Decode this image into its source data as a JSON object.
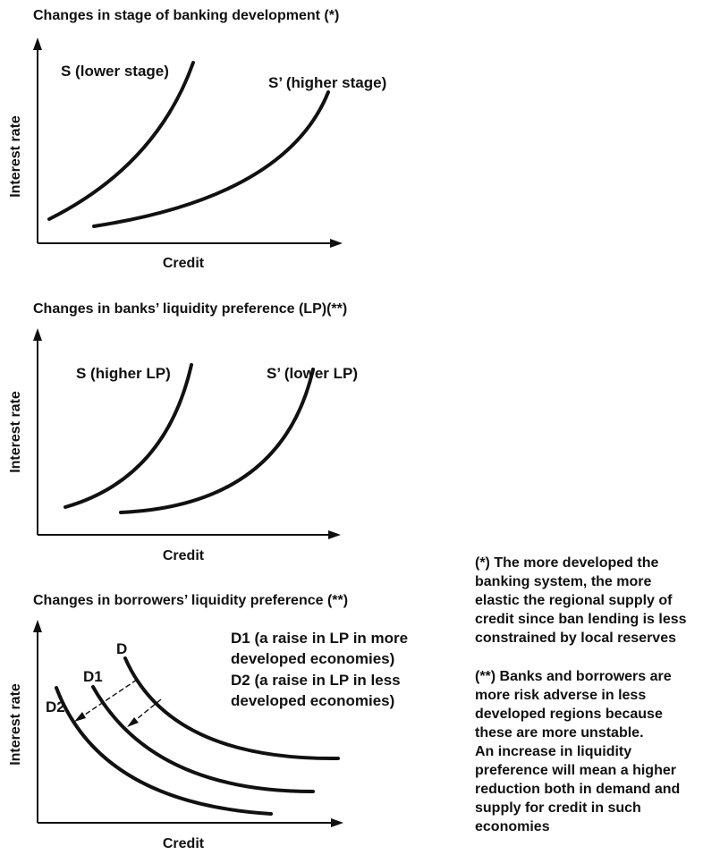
{
  "panel1": {
    "title": "Changes in stage of banking development (*)",
    "ylabel": "Interest rate",
    "xlabel": "Credit",
    "curve_s_label": "S (lower stage)",
    "curve_s2_label": "S’ (higher stage)"
  },
  "panel2": {
    "title": "Changes in banks’ liquidity preference (LP)(**)",
    "ylabel": "Interest rate",
    "xlabel": "Credit",
    "curve_s_label": "S (higher LP)",
    "curve_s2_label": "S’ (lower LP)"
  },
  "panel3": {
    "title": "Changes in borrowers’ liquidity preference (**)",
    "ylabel": "Interest rate",
    "xlabel": "Credit",
    "curve_d_label": "D",
    "curve_d1_label": "D1",
    "curve_d2_label": "D2",
    "legend_lines": [
      "D1 (a raise in LP in more",
      "developed economies)",
      "D2 (a raise in LP in less",
      "developed economies)"
    ]
  },
  "notes": {
    "note1_lines": [
      "(*) The more developed the",
      "banking system, the more",
      "elastic the regional supply of",
      "credit since ban lending is less",
      "constrained by local reserves"
    ],
    "note2_lines": [
      "(**) Banks and borrowers are",
      "more risk adverse in less",
      "developed regions because",
      "these are more unstable.",
      "An increase in liquidity",
      "preference will mean a higher",
      "reduction both in demand and",
      "supply for credit in such",
      "economies"
    ]
  },
  "colors": {
    "ink": "#111111",
    "background": "#ffffff"
  }
}
